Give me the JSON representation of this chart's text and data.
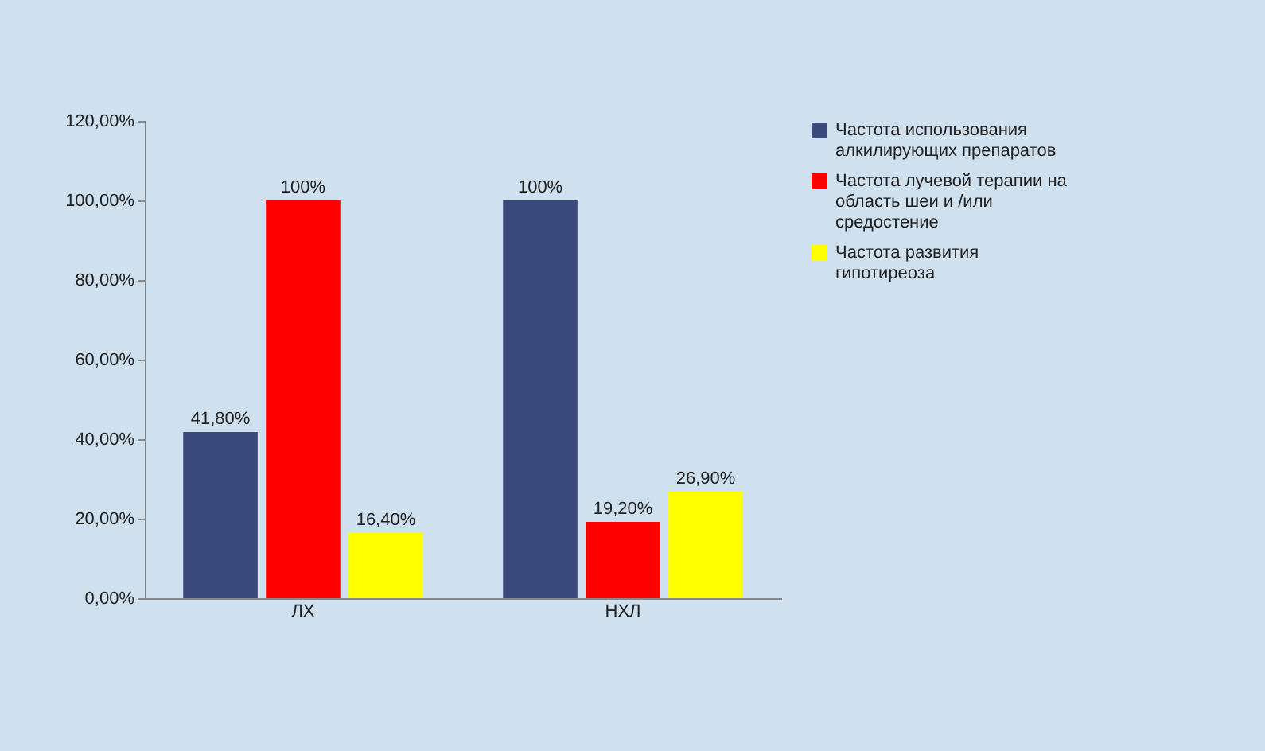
{
  "chart_data": {
    "type": "bar",
    "categories": [
      "ЛХ",
      "НХЛ"
    ],
    "series": [
      {
        "name": "Частота использования алкилирующих препаратов",
        "color": "#3b4a7c",
        "values": [
          41.8,
          100
        ],
        "value_labels": [
          "41,80%",
          "100%"
        ]
      },
      {
        "name": "Частота лучевой терапии на область шеи и /или средостение",
        "color": "#ff0000",
        "values": [
          100,
          19.2
        ],
        "value_labels": [
          "100%",
          "19,20%"
        ]
      },
      {
        "name": "Частота развития гипотиреоза",
        "color": "#ffff00",
        "values": [
          16.4,
          26.9
        ],
        "value_labels": [
          "16,40%",
          "26,90%"
        ]
      }
    ],
    "ylim": [
      0,
      120
    ],
    "yticks": [
      {
        "value": 0,
        "label": "0,00%"
      },
      {
        "value": 20,
        "label": "20,00%"
      },
      {
        "value": 40,
        "label": "40,00%"
      },
      {
        "value": 60,
        "label": "60,00%"
      },
      {
        "value": 80,
        "label": "80,00%"
      },
      {
        "value": 100,
        "label": "100,00%"
      },
      {
        "value": 120,
        "label": "120,00%"
      }
    ],
    "legend": "right",
    "grid": false
  }
}
